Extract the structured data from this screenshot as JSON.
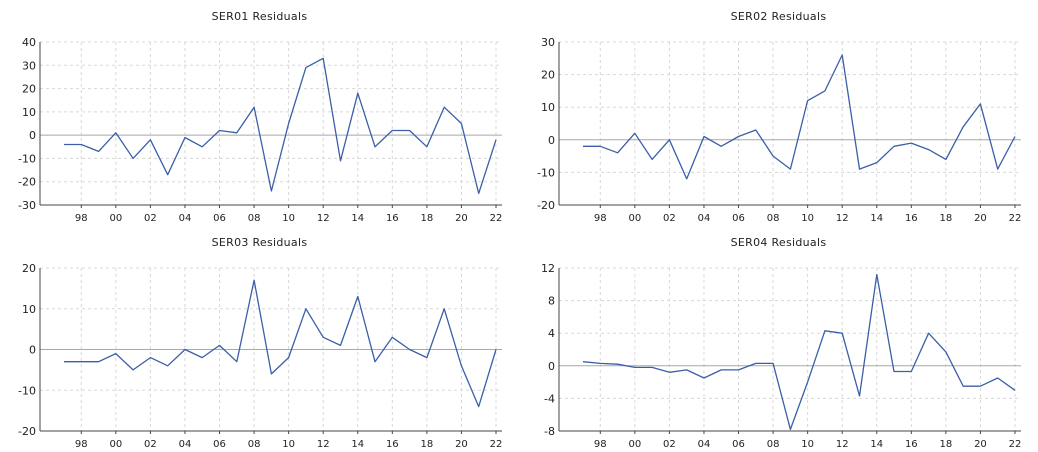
{
  "chart_data": [
    {
      "type": "line",
      "title": "SER01 Residuals",
      "x": [
        1997,
        1998,
        1999,
        2000,
        2001,
        2002,
        2003,
        2004,
        2005,
        2006,
        2007,
        2008,
        2009,
        2010,
        2011,
        2012,
        2013,
        2014,
        2015,
        2016,
        2017,
        2018,
        2019,
        2020,
        2021,
        2022
      ],
      "xticks": [
        1998,
        2000,
        2002,
        2004,
        2006,
        2008,
        2010,
        2012,
        2014,
        2016,
        2018,
        2020,
        2022
      ],
      "xtick_labels": [
        "98",
        "00",
        "02",
        "04",
        "06",
        "08",
        "10",
        "12",
        "14",
        "16",
        "18",
        "20",
        "22"
      ],
      "y": [
        -4,
        -4,
        -7,
        1,
        -10,
        -2,
        -17,
        -1,
        -5,
        2,
        1,
        12,
        -24,
        5,
        29,
        33,
        -11,
        18,
        -5,
        2,
        2,
        -5,
        12,
        5,
        -25,
        -2
      ],
      "ylim": [
        -30,
        40
      ],
      "yticks": [
        -30,
        -20,
        -10,
        0,
        10,
        20,
        30,
        40
      ],
      "grid": true,
      "color": "#3a5fa8"
    },
    {
      "type": "line",
      "title": "SER02 Residuals",
      "x": [
        1997,
        1998,
        1999,
        2000,
        2001,
        2002,
        2003,
        2004,
        2005,
        2006,
        2007,
        2008,
        2009,
        2010,
        2011,
        2012,
        2013,
        2014,
        2015,
        2016,
        2017,
        2018,
        2019,
        2020,
        2021,
        2022
      ],
      "xticks": [
        1998,
        2000,
        2002,
        2004,
        2006,
        2008,
        2010,
        2012,
        2014,
        2016,
        2018,
        2020,
        2022
      ],
      "xtick_labels": [
        "98",
        "00",
        "02",
        "04",
        "06",
        "08",
        "10",
        "12",
        "14",
        "16",
        "18",
        "20",
        "22"
      ],
      "y": [
        -2,
        -2,
        -4,
        2,
        -6,
        0,
        -12,
        1,
        -2,
        1,
        3,
        -5,
        -9,
        12,
        15,
        26,
        -9,
        -7,
        -2,
        -1,
        -3,
        -6,
        4,
        11,
        -9,
        1
      ],
      "ylim": [
        -20,
        30
      ],
      "yticks": [
        -20,
        -10,
        0,
        10,
        20,
        30
      ],
      "grid": true,
      "color": "#3a5fa8"
    },
    {
      "type": "line",
      "title": "SER03 Residuals",
      "x": [
        1997,
        1998,
        1999,
        2000,
        2001,
        2002,
        2003,
        2004,
        2005,
        2006,
        2007,
        2008,
        2009,
        2010,
        2011,
        2012,
        2013,
        2014,
        2015,
        2016,
        2017,
        2018,
        2019,
        2020,
        2021,
        2022
      ],
      "xticks": [
        1998,
        2000,
        2002,
        2004,
        2006,
        2008,
        2010,
        2012,
        2014,
        2016,
        2018,
        2020,
        2022
      ],
      "xtick_labels": [
        "98",
        "00",
        "02",
        "04",
        "06",
        "08",
        "10",
        "12",
        "14",
        "16",
        "18",
        "20",
        "22"
      ],
      "y": [
        -3,
        -3,
        -3,
        -1,
        -5,
        -2,
        -4,
        0,
        -2,
        1,
        -3,
        17,
        -6,
        -2,
        10,
        3,
        1,
        13,
        -3,
        3,
        0,
        -2,
        10,
        -4,
        -14,
        0
      ],
      "ylim": [
        -20,
        20
      ],
      "yticks": [
        -20,
        -10,
        0,
        10,
        20
      ],
      "grid": true,
      "color": "#3a5fa8"
    },
    {
      "type": "line",
      "title": "SER04 Residuals",
      "x": [
        1997,
        1998,
        1999,
        2000,
        2001,
        2002,
        2003,
        2004,
        2005,
        2006,
        2007,
        2008,
        2009,
        2010,
        2011,
        2012,
        2013,
        2014,
        2015,
        2016,
        2017,
        2018,
        2019,
        2020,
        2021,
        2022
      ],
      "xticks": [
        1998,
        2000,
        2002,
        2004,
        2006,
        2008,
        2010,
        2012,
        2014,
        2016,
        2018,
        2020,
        2022
      ],
      "xtick_labels": [
        "98",
        "00",
        "02",
        "04",
        "06",
        "08",
        "10",
        "12",
        "14",
        "16",
        "18",
        "20",
        "22"
      ],
      "y": [
        0.5,
        0.3,
        0.2,
        -0.2,
        -0.2,
        -0.8,
        -0.5,
        -1.5,
        -0.5,
        -0.5,
        0.3,
        0.3,
        -7.8,
        -2.0,
        4.3,
        4.0,
        -3.7,
        11.2,
        -0.7,
        -0.7,
        4.0,
        1.7,
        -2.5,
        -2.5,
        -1.5,
        -3.0
      ],
      "ylim": [
        -8,
        12
      ],
      "yticks": [
        -8,
        -4,
        0,
        4,
        8,
        12
      ],
      "grid": true,
      "color": "#3a5fa8"
    }
  ]
}
